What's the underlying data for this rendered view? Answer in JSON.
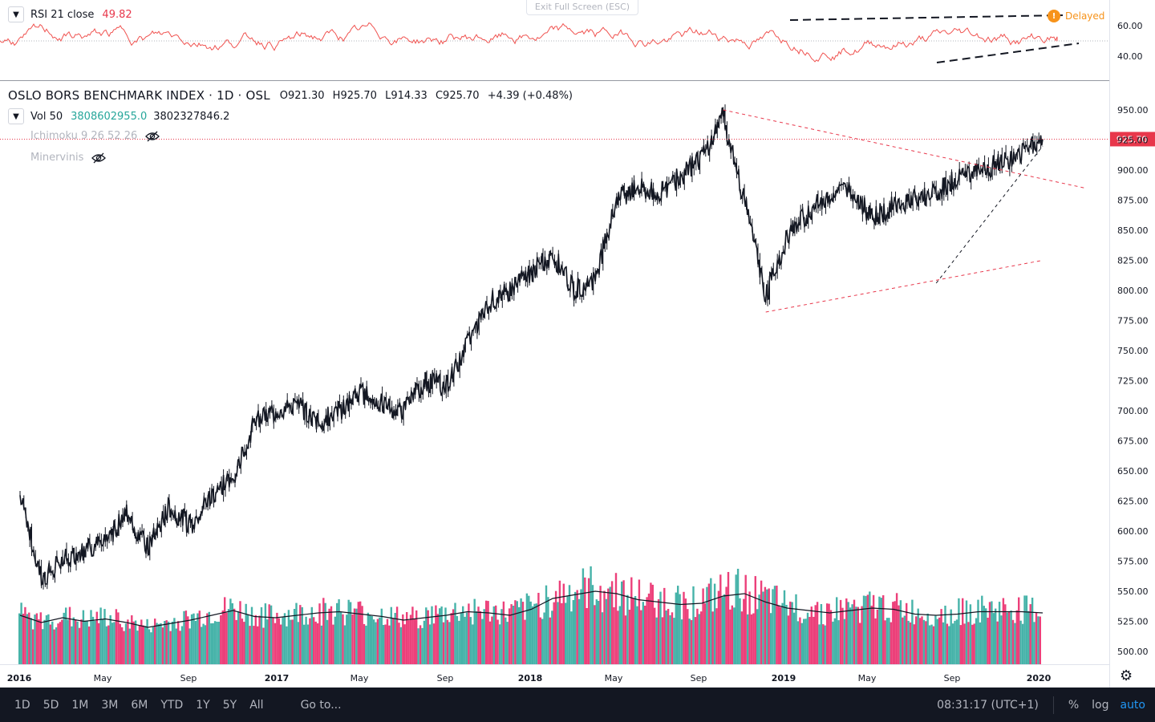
{
  "rsi_panel": {
    "title": "RSI 21 close",
    "value": "49.82",
    "ticks": [
      "60.00",
      "40.00"
    ],
    "delayed_label": "Delayed",
    "delayed_icon": "exclamation-icon"
  },
  "exit_fullscreen": "Exit Full Screen (ESC)",
  "main_panel": {
    "title": "OSLO BORS BENCHMARK INDEX · 1D · OSL",
    "ohlc": {
      "o_label": "O",
      "o": "921.30",
      "h_label": "H",
      "h": "925.70",
      "l_label": "L",
      "l": "914.33",
      "c_label": "C",
      "c": "925.70",
      "change": "+4.39 (+0.48%)"
    },
    "vol_label": "Vol 50",
    "vol_value": "3808602955.0",
    "vol_ma": "3802327846.2",
    "hidden_indicators": [
      "Ichimoku 9 26 52 26",
      "Minervinis"
    ],
    "last_price_label": "925.70"
  },
  "price_axis_ticks": [
    "950.00",
    "925.00",
    "900.00",
    "875.00",
    "850.00",
    "825.00",
    "800.00",
    "775.00",
    "750.00",
    "725.00",
    "700.00",
    "675.00",
    "650.00",
    "625.00",
    "600.00",
    "575.00",
    "550.00",
    "525.00",
    "500.00"
  ],
  "time_axis_ticks": [
    "2016",
    "May",
    "Sep",
    "2017",
    "May",
    "Sep",
    "2018",
    "May",
    "Sep",
    "2019",
    "May",
    "Sep",
    "2020"
  ],
  "bottom_bar": {
    "ranges": [
      "1D",
      "5D",
      "1M",
      "3M",
      "6M",
      "YTD",
      "1Y",
      "5Y",
      "All"
    ],
    "goto": "Go to...",
    "clock": "08:31:17 (UTC+1)",
    "percent": "%",
    "log": "log",
    "auto": "auto"
  },
  "colors": {
    "up": "#26a69a",
    "down": "#e91e63",
    "rsi": "#f05350",
    "trend_red": "#e8374b",
    "price_line": "#131722"
  },
  "chart_data": {
    "type": "line",
    "title": "OSLO BORS BENCHMARK INDEX · 1D · OSL",
    "xlabel": "",
    "ylabel": "",
    "ylim": [
      490,
      960
    ],
    "x": [
      "2016-01",
      "2016-02",
      "2016-03",
      "2016-04",
      "2016-05",
      "2016-06",
      "2016-07",
      "2016-08",
      "2016-09",
      "2016-10",
      "2016-11",
      "2016-12",
      "2017-01",
      "2017-02",
      "2017-03",
      "2017-04",
      "2017-05",
      "2017-06",
      "2017-07",
      "2017-08",
      "2017-09",
      "2017-10",
      "2017-11",
      "2017-12",
      "2018-01",
      "2018-02",
      "2018-03",
      "2018-04",
      "2018-05",
      "2018-06",
      "2018-07",
      "2018-08",
      "2018-09",
      "2018-10",
      "2018-11",
      "2018-12",
      "2019-01",
      "2019-02",
      "2019-03",
      "2019-04",
      "2019-05",
      "2019-06",
      "2019-07",
      "2019-08",
      "2019-09",
      "2019-10",
      "2019-11",
      "2019-12",
      "2020-01"
    ],
    "series": [
      {
        "values": [
          630,
          560,
          575,
          585,
          590,
          615,
          585,
          620,
          605,
          630,
          645,
          690,
          700,
          705,
          690,
          700,
          715,
          705,
          700,
          725,
          720,
          755,
          790,
          800,
          815,
          830,
          800,
          810,
          875,
          885,
          880,
          895,
          910,
          945,
          875,
          795,
          845,
          865,
          880,
          885,
          860,
          870,
          875,
          880,
          895,
          900,
          905,
          915,
          925.7
        ]
      },
      {
        "values": [
          530,
          524,
          528,
          525,
          527,
          524,
          520,
          523,
          526,
          530,
          534,
          529,
          528,
          530,
          532,
          533,
          531,
          529,
          526,
          528,
          530,
          533,
          532,
          530,
          535,
          544,
          547,
          550,
          548,
          543,
          541,
          539,
          540,
          546,
          548,
          541,
          536,
          534,
          532,
          534,
          536,
          535,
          531,
          530,
          531,
          533,
          533,
          533,
          532
        ]
      }
    ],
    "trendlines": [
      {
        "from": [
          "2018-10",
          950
        ],
        "to": [
          "2020-03",
          885
        ]
      },
      {
        "from": [
          "2018-12",
          782
        ],
        "to": [
          "2020-01",
          825
        ]
      },
      {
        "from": [
          "2019-08",
          806
        ],
        "to": [
          "2020-01",
          920
        ]
      }
    ],
    "rsi": {
      "title": "RSI 21 close",
      "last": 49.82,
      "ylim": [
        30,
        70
      ]
    },
    "volume": {
      "title": "Vol 50",
      "last": 3808602955.0,
      "ma": 3802327846.2
    }
  }
}
